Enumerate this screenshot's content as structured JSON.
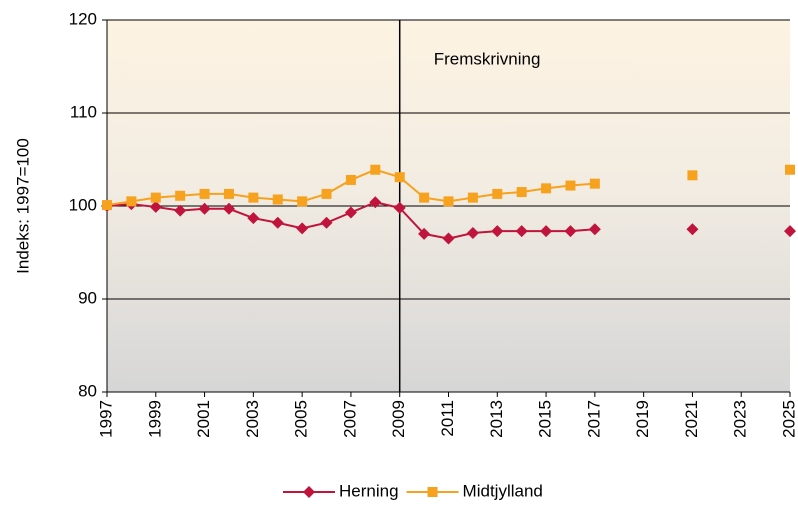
{
  "chart_data": {
    "type": "line",
    "y_label": "Indeks: 1997=100",
    "x": [
      1997,
      1998,
      1999,
      2000,
      2001,
      2002,
      2003,
      2004,
      2005,
      2006,
      2007,
      2008,
      2009,
      2010,
      2011,
      2012,
      2013,
      2014,
      2015,
      2016,
      2017,
      2018,
      2019,
      2020,
      2021,
      2022,
      2023,
      2024,
      2025
    ],
    "series": [
      {
        "name": "Herning",
        "color": "#c0143c",
        "marker": "diamond",
        "values": [
          100,
          100.2,
          99.9,
          99.5,
          99.7,
          99.7,
          98.7,
          98.2,
          97.6,
          98.2,
          99.3,
          100.4,
          99.8,
          97.0,
          96.5,
          97.1,
          97.3,
          97.3,
          97.3,
          97.3,
          97.5,
          null,
          null,
          null,
          97.5,
          null,
          null,
          null,
          97.3
        ]
      },
      {
        "name": "Midtjylland",
        "color": "#f6a21e",
        "marker": "square",
        "values": [
          100.1,
          100.5,
          100.9,
          101.1,
          101.3,
          101.3,
          100.9,
          100.7,
          100.5,
          101.3,
          102.8,
          103.9,
          103.1,
          100.9,
          100.5,
          100.9,
          101.3,
          101.5,
          101.9,
          102.2,
          102.4,
          null,
          null,
          null,
          103.3,
          null,
          null,
          null,
          103.9
        ]
      }
    ],
    "xlim": [
      1997,
      2025
    ],
    "xticks": [
      1997,
      1999,
      2001,
      2003,
      2005,
      2007,
      2009,
      2011,
      2013,
      2015,
      2017,
      2019,
      2021,
      2023,
      2025
    ],
    "ylim": [
      80,
      120
    ],
    "yticks": [
      80,
      90,
      100,
      110,
      120
    ],
    "grid": true,
    "legend": "bottom",
    "annotations": [
      {
        "text": "Fremskrivning",
        "x": 2009
      }
    ]
  }
}
